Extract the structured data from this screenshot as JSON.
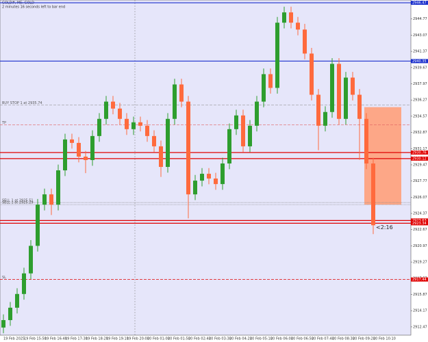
{
  "chart_data": {
    "type": "candlestick",
    "title": "GOLD#, M5: GOLD",
    "subtitle": "2 minutes 16 seconds left to bar end",
    "timer": "<2:16",
    "categories": [
      "19 Feb 2025",
      null,
      null,
      "19 Feb 15:50",
      null,
      null,
      "19 Feb 16:40",
      null,
      null,
      "19 Feb 17:30",
      null,
      null,
      "19 Feb 18:20",
      null,
      null,
      "19 Feb 19:10",
      null,
      null,
      "19 Feb 20:00",
      null,
      null,
      "20 Feb 01:00",
      null,
      null,
      "20 Feb 01:50",
      null,
      null,
      "20 Feb 02:40",
      null,
      null,
      "20 Feb 03:30",
      null,
      null,
      "20 Feb 04:20",
      null,
      null,
      "20 Feb 05:10",
      null,
      null,
      "20 Feb 06:00",
      null,
      null,
      "20 Feb 06:50",
      null,
      null,
      "20 Feb 07:40",
      null,
      null,
      "20 Feb 08:30",
      null,
      null,
      "20 Feb 09:20",
      null,
      null,
      "20 Feb 10:10"
    ],
    "open": [
      2912.4,
      2913.18,
      2914.48,
      2915.92,
      2918.08,
      2920.97,
      2925.29,
      2926.37,
      2925.29,
      2928.89,
      2932.13,
      2931.77,
      2930.33,
      2929.97,
      2932.49,
      2934.29,
      2936.1,
      2935.37,
      2934.29,
      2933.21,
      2933.93,
      2933.57,
      2932.49,
      2931.41,
      2929.25,
      2934.29,
      2937.9,
      2936.1,
      2926.37,
      2927.81,
      2928.53,
      2928.03,
      2927.45,
      2929.61,
      2933.21,
      2934.65,
      2931.41,
      2933.57,
      2936.1,
      2938.98,
      2937.54,
      2944.38,
      2945.46,
      2944.38,
      2943.66,
      2941.14,
      2936.82,
      2933.57,
      2935.01,
      2940.06,
      2934.29,
      2938.62,
      2936.82,
      2934.29,
      2929.61
    ],
    "high": [
      2913.78,
      2915.08,
      2916.52,
      2918.68,
      2921.57,
      2925.89,
      2926.97,
      2926.97,
      2929.49,
      2932.73,
      2932.73,
      2932.37,
      2930.93,
      2933.09,
      2934.89,
      2936.7,
      2936.7,
      2935.97,
      2934.89,
      2934.53,
      2934.53,
      2934.17,
      2933.09,
      2932.01,
      2934.89,
      2938.5,
      2938.5,
      2936.7,
      2928.41,
      2929.13,
      2929.13,
      2928.63,
      2930.21,
      2933.81,
      2935.25,
      2935.25,
      2934.17,
      2936.7,
      2939.58,
      2939.58,
      2944.98,
      2946.06,
      2946.06,
      2944.98,
      2944.26,
      2941.74,
      2937.42,
      2935.61,
      2940.66,
      2940.66,
      2939.22,
      2939.22,
      2937.42,
      2934.89,
      2930.21
    ],
    "low": [
      2911.8,
      2912.58,
      2913.88,
      2915.32,
      2917.48,
      2920.37,
      2924.69,
      2924.2,
      2924.69,
      2928.29,
      2931.17,
      2929.73,
      2928.6,
      2929.37,
      2931.89,
      2933.69,
      2934.77,
      2933.69,
      2932.61,
      2932.61,
      2932.97,
      2931.89,
      2930.81,
      2928.2,
      2928.65,
      2933.69,
      2935.5,
      2923.85,
      2925.77,
      2927.21,
      2927.43,
      2926.85,
      2926.85,
      2929.01,
      2932.61,
      2930.81,
      2930.81,
      2932.97,
      2935.5,
      2936.94,
      2936.94,
      2943.78,
      2943.78,
      2943.06,
      2940.54,
      2936.22,
      2931.0,
      2932.97,
      2934.41,
      2933.69,
      2933.69,
      2936.22,
      2930.0,
      2929.01,
      2922.2
    ],
    "close": [
      2913.18,
      2914.48,
      2915.92,
      2918.08,
      2920.97,
      2925.29,
      2926.37,
      2925.29,
      2928.89,
      2932.13,
      2931.77,
      2930.33,
      2929.97,
      2932.49,
      2934.29,
      2936.1,
      2935.37,
      2934.29,
      2933.21,
      2933.93,
      2933.57,
      2932.49,
      2931.41,
      2929.25,
      2934.29,
      2937.9,
      2936.1,
      2926.37,
      2927.81,
      2928.53,
      2928.03,
      2927.45,
      2929.61,
      2933.21,
      2934.65,
      2931.41,
      2933.57,
      2936.1,
      2938.98,
      2937.54,
      2944.38,
      2945.46,
      2944.38,
      2943.66,
      2941.14,
      2936.82,
      2933.57,
      2935.01,
      2940.06,
      2934.29,
      2938.62,
      2936.82,
      2934.29,
      2929.61,
      2923.13
    ],
    "up_color": "#2e9e2e",
    "down_color": "#ff6a3d",
    "ylim": [
      2911.6,
      2946.76
    ],
    "yticks": [
      2912.47,
      2914.17,
      2915.87,
      2917.57,
      2919.27,
      2920.97,
      2922.67,
      2924.37,
      2926.07,
      2927.77,
      2929.47,
      2931.17,
      2932.87,
      2934.57,
      2936.27,
      2937.97,
      2939.67,
      2941.37,
      2943.07,
      2944.77,
      2946.47
    ],
    "levels": [
      {
        "value": 2946.47,
        "color": "#1a2fcc",
        "style": "solid",
        "tag": true
      },
      {
        "value": 2940.35,
        "color": "#1a2fcc",
        "style": "solid",
        "tag": true
      },
      {
        "value": 2935.74,
        "color": "#999999",
        "style": "dashed",
        "text": "BUY STOP 1 at 2935.74"
      },
      {
        "value": 2933.65,
        "color": "#e06060",
        "style": "dashed",
        "text": "TP"
      },
      {
        "value": 2930.76,
        "color": "#e00000",
        "style": "solid",
        "tag": true
      },
      {
        "value": 2930.12,
        "color": "#e00000",
        "style": "solid",
        "tag": true
      },
      {
        "value": 2925.51,
        "color": "#888888",
        "style": "dotted",
        "text": "SELL 1 at 2925.51"
      },
      {
        "value": 2925.29,
        "color": "#888888",
        "style": "dotted",
        "text": "SELL 1 at 2925.29"
      },
      {
        "value": 2923.63,
        "color": "#e00000",
        "style": "solid",
        "tag": true
      },
      {
        "value": 2923.34,
        "color": "#e00000",
        "style": "solid",
        "tag": true
      },
      {
        "value": 2917.44,
        "color": "#e00000",
        "style": "dashed",
        "text": "SL",
        "tag": true
      }
    ],
    "zone": {
      "top": 2935.52,
      "bottom": 2925.29,
      "color": "#ffa07a"
    },
    "background": "#e6e6fa"
  }
}
